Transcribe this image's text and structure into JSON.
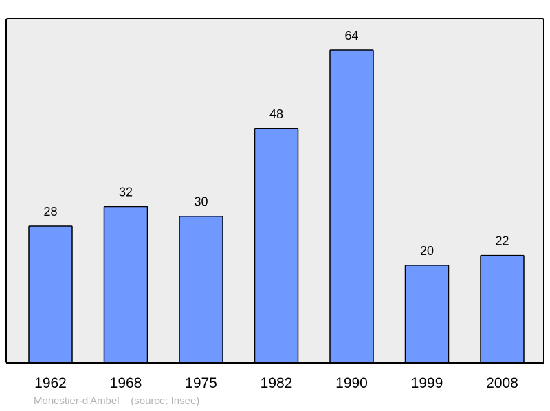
{
  "chart_data": {
    "type": "bar",
    "categories": [
      "1962",
      "1968",
      "1975",
      "1982",
      "1990",
      "1999",
      "2008"
    ],
    "values": [
      28,
      32,
      30,
      48,
      64,
      20,
      22
    ],
    "title": "",
    "xlabel": "",
    "ylabel": "",
    "ylim": [
      0,
      70
    ],
    "grid": false,
    "data_labels": true,
    "colors": {
      "bar": "#7099ff",
      "plot_background": "#ededed",
      "border": "#000000"
    }
  },
  "footer": {
    "place": "Monestier-d'Ambel",
    "source": "(source: Insee)"
  }
}
